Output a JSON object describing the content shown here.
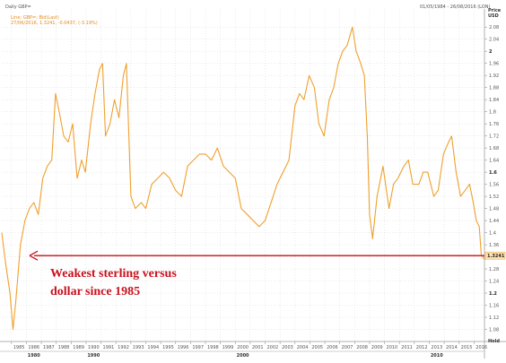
{
  "header": {
    "title": "Daily GBP=",
    "date_range": "01/05/1984 - 26/08/2016 (LON)",
    "axis_title": "Price",
    "axis_unit": "USD"
  },
  "legend": {
    "line1": "Line; GBP=; Bid(Last)",
    "line2": "27/06/2016, 1.3241, -0.0437, (-3.19%)"
  },
  "annotation": {
    "line1": "Weakest sterling versus",
    "line2": "dollar since 1985"
  },
  "colors": {
    "series": "#f0a02c",
    "annotation": "#c8111e",
    "grid": "#d6d6d6"
  },
  "chart_data": {
    "type": "line",
    "title": "Daily GBP=",
    "ylabel": "Price USD",
    "xlim": [
      1984.35,
      2016.7
    ],
    "ylim": [
      1.04,
      2.14
    ],
    "grid": true,
    "y_ticks": [
      1.08,
      1.12,
      1.16,
      1.2,
      1.24,
      1.28,
      1.32,
      1.36,
      1.4,
      1.44,
      1.48,
      1.52,
      1.56,
      1.6,
      1.64,
      1.68,
      1.72,
      1.76,
      1.8,
      1.84,
      1.88,
      1.92,
      1.96,
      2.0,
      2.04,
      2.08
    ],
    "y_tick_labels": [
      "1.08",
      "1.12",
      "1.16",
      "1.2",
      "1.24",
      "1.28",
      "1.32",
      "1.36",
      "1.4",
      "1.44",
      "1.48",
      "1.52",
      "1.56",
      "1.6",
      "1.64",
      "1.68",
      "1.72",
      "1.76",
      "1.8",
      "1.84",
      "1.88",
      "1.92",
      "1.96",
      "2",
      "2.04",
      "2.08"
    ],
    "bold_y_ticks": [
      1.2,
      1.6,
      2.0
    ],
    "x_tick_labels": [
      "1985",
      "1986",
      "1987",
      "1988",
      "1989",
      "1990",
      "1991",
      "1992",
      "1993",
      "1994",
      "1995",
      "1996",
      "1997",
      "1998",
      "1999",
      "2000",
      "2001",
      "2002",
      "2003",
      "2004",
      "2005",
      "2006",
      "2007",
      "2008",
      "2009",
      "2010",
      "2011",
      "2012",
      "2013",
      "2014",
      "2015",
      "2016"
    ],
    "decade_labels": [
      {
        "label": "1980",
        "x": 1986.5
      },
      {
        "label": "1990",
        "x": 1990.5
      },
      {
        "label": "2000",
        "x": 2000.5
      },
      {
        "label": "2010",
        "x": 2013.5
      }
    ],
    "last_value": {
      "x": 2016.49,
      "y": 1.3241,
      "label": "1.3241"
    },
    "axis_end_label": "Hold",
    "series": [
      {
        "x": [
          1984.35,
          1984.6,
          1984.9,
          1985.1,
          1985.3,
          1985.6,
          1985.9,
          1986.2,
          1986.5,
          1986.8,
          1987.1,
          1987.4,
          1987.7,
          1987.95,
          1988.2,
          1988.5,
          1988.8,
          1989.1,
          1989.4,
          1989.7,
          1989.95,
          1990.3,
          1990.6,
          1990.9,
          1991.1,
          1991.3,
          1991.6,
          1991.9,
          1992.2,
          1992.5,
          1992.7,
          1992.85,
          1993.0,
          1993.3,
          1993.7,
          1994.0,
          1994.4,
          1994.8,
          1995.2,
          1995.6,
          1996.0,
          1996.4,
          1996.8,
          1997.2,
          1997.6,
          1998.0,
          1998.4,
          1998.8,
          1999.2,
          1999.6,
          2000.0,
          2000.4,
          2000.8,
          2001.2,
          2001.6,
          2002.0,
          2002.4,
          2002.8,
          2003.2,
          2003.6,
          2004.0,
          2004.3,
          2004.6,
          2004.95,
          2005.3,
          2005.6,
          2005.95,
          2006.3,
          2006.6,
          2006.9,
          2007.2,
          2007.5,
          2007.85,
          2008.1,
          2008.4,
          2008.65,
          2008.85,
          2009.0,
          2009.2,
          2009.5,
          2009.9,
          2010.3,
          2010.6,
          2010.9,
          2011.3,
          2011.6,
          2011.9,
          2012.3,
          2012.6,
          2012.9,
          2013.3,
          2013.6,
          2013.95,
          2014.3,
          2014.5,
          2014.8,
          2015.1,
          2015.4,
          2015.7,
          2015.95,
          2016.15,
          2016.35,
          2016.49,
          2016.6,
          2016.7
        ],
        "y": [
          1.4,
          1.3,
          1.2,
          1.08,
          1.18,
          1.36,
          1.44,
          1.48,
          1.5,
          1.46,
          1.58,
          1.62,
          1.64,
          1.86,
          1.8,
          1.72,
          1.7,
          1.76,
          1.58,
          1.64,
          1.6,
          1.76,
          1.86,
          1.94,
          1.96,
          1.72,
          1.76,
          1.84,
          1.78,
          1.92,
          1.96,
          1.74,
          1.52,
          1.48,
          1.5,
          1.48,
          1.56,
          1.58,
          1.6,
          1.58,
          1.54,
          1.52,
          1.62,
          1.64,
          1.66,
          1.66,
          1.64,
          1.68,
          1.62,
          1.6,
          1.58,
          1.48,
          1.46,
          1.44,
          1.42,
          1.44,
          1.5,
          1.56,
          1.6,
          1.64,
          1.82,
          1.86,
          1.84,
          1.92,
          1.88,
          1.76,
          1.72,
          1.84,
          1.88,
          1.96,
          2.0,
          2.02,
          2.08,
          2.0,
          1.96,
          1.92,
          1.72,
          1.46,
          1.38,
          1.52,
          1.62,
          1.48,
          1.56,
          1.58,
          1.62,
          1.64,
          1.56,
          1.56,
          1.6,
          1.6,
          1.52,
          1.54,
          1.66,
          1.7,
          1.72,
          1.6,
          1.52,
          1.54,
          1.56,
          1.5,
          1.44,
          1.42,
          1.3241,
          1.32,
          1.31
        ]
      }
    ]
  }
}
